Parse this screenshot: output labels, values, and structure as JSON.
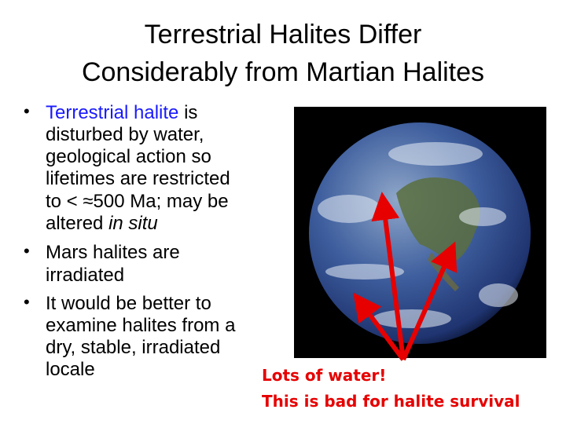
{
  "title": {
    "line1": "Terrestrial Halites Differ",
    "line2": "Considerably from Martian Halites"
  },
  "bullets": [
    {
      "lines": [
        {
          "highlight": "Terrestrial halite",
          "rest": " is"
        },
        {
          "text": "disturbed by water,"
        },
        {
          "text": "geological action so"
        },
        {
          "text": "lifetimes are restricted"
        },
        {
          "text": "to < ≈500 Ma; may be"
        },
        {
          "text": "altered ",
          "italic": "in situ"
        }
      ]
    },
    {
      "lines": [
        {
          "text": "Mars halites are"
        },
        {
          "text": "irradiated"
        }
      ]
    },
    {
      "lines": [
        {
          "text": "It would be better to"
        },
        {
          "text": "examine halites from a"
        },
        {
          "text": "dry, stable, irradiated"
        },
        {
          "text": "locale"
        }
      ]
    }
  ],
  "bullet_glyph": "•",
  "image": {
    "subject": "earth-globe-photo",
    "arrow_color": "#e60000"
  },
  "callout": {
    "line1": "Lots of water!",
    "line2": "This is bad for halite survival"
  },
  "colors": {
    "highlight": "#1a1aff",
    "callout": "#e60000"
  }
}
